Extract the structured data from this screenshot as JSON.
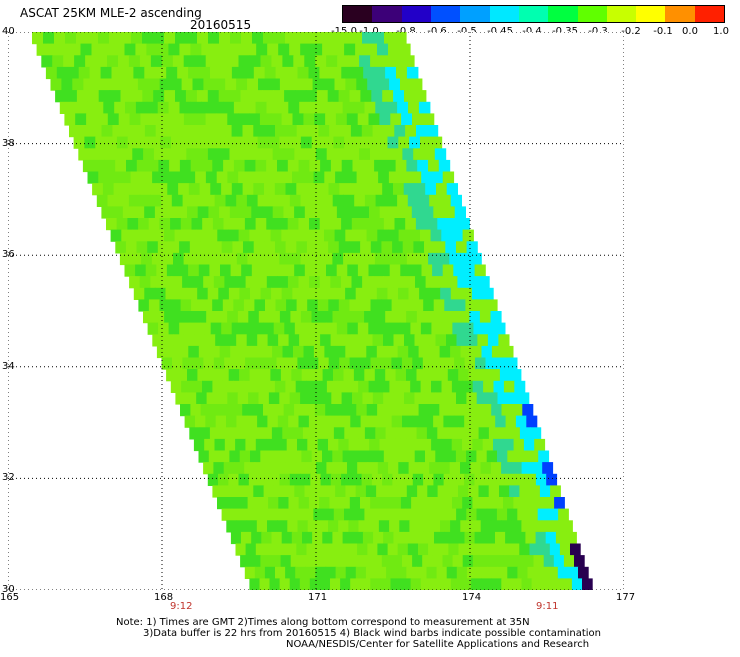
{
  "header": {
    "title": "ASCAT 25KM MLE-2 ascending",
    "date": "20160515"
  },
  "colorbar": {
    "labels": [
      "-15.0",
      "-1.0",
      "-0.8",
      "-0.6",
      "-0.5",
      "-0.45",
      "-0.4",
      "-0.35",
      "-0.3",
      "-0.2",
      "-0.1",
      "0.0",
      "1.0"
    ],
    "colors": [
      "#2a0020",
      "#3c0078",
      "#2200c8",
      "#0050ff",
      "#00a0ff",
      "#00e8ff",
      "#00ffb0",
      "#00ff40",
      "#60ff00",
      "#c8ff00",
      "#ffff00",
      "#ff9000",
      "#ff2000"
    ]
  },
  "axes": {
    "lat_labels": [
      "40",
      "38",
      "36",
      "34",
      "32",
      "30"
    ],
    "lon_labels": [
      "165",
      "168",
      "171",
      "174",
      "177"
    ],
    "time_labels": [
      "9:12",
      "9:11"
    ]
  },
  "map": {
    "lat_range": [
      30,
      40
    ],
    "lon_range": [
      165,
      177
    ],
    "swath_color_main": "#88ee10",
    "swath_color_dark": "#40e020",
    "edge_colors": [
      "#30d890",
      "#00eeff",
      "#0040ff",
      "#280050"
    ]
  },
  "footer": {
    "note1": "Note: 1) Times are GMT 2)Times along bottom correspond to measurement at 35N",
    "note2": "3)Data buffer is 22 hrs from 20160515 4) Black wind barbs indicate possible contamination",
    "note3": "NOAA/NESDIS/Center for Satellite Applications and Research"
  }
}
